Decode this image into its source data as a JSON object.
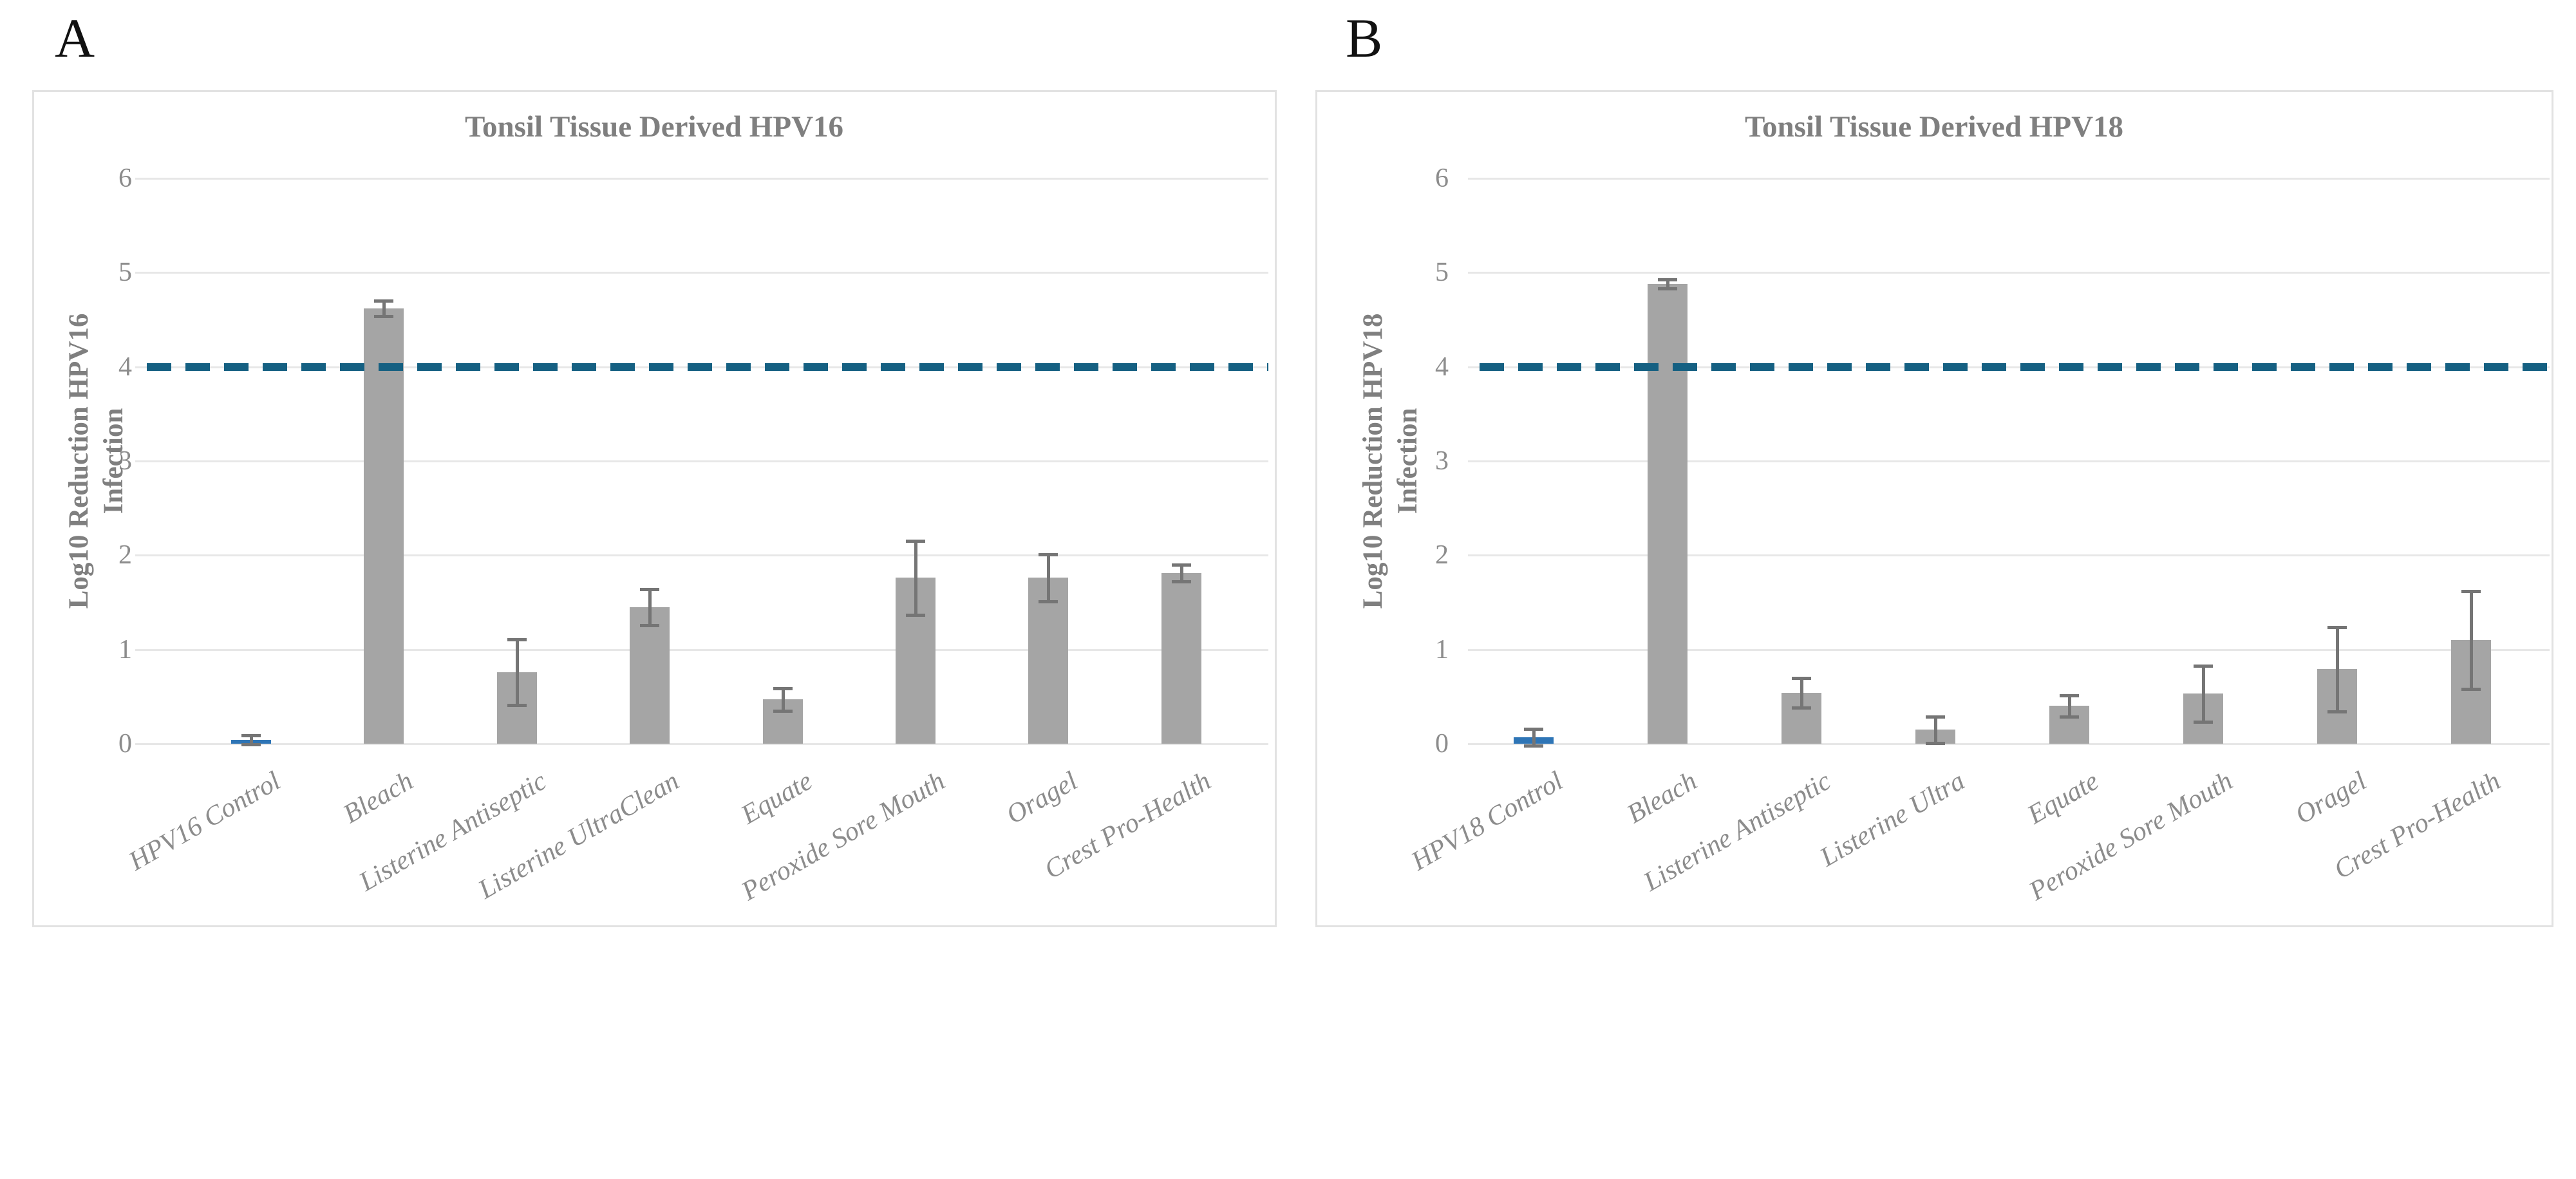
{
  "figure": {
    "panel_a_letter": "A",
    "panel_b_letter": "B"
  },
  "style": {
    "bar_default_color": "#A5A5A5",
    "bar_control_color": "#2E75B6",
    "error_bar_color": "#757575",
    "reference_line_color": "#156082",
    "gridline_color": "#E7E7E7",
    "panel_border_color": "#E2E2E2",
    "title_color": "#7F7F7F",
    "tick_label_color": "#8C8C8C"
  },
  "chart_data": [
    {
      "type": "bar",
      "title": "Tonsil Tissue Derived HPV16",
      "ylabel_line1": "Log10 Reduction HPV16",
      "ylabel_line2": "Infection",
      "ylim": [
        0,
        6
      ],
      "yticks": [
        "0",
        "1",
        "2",
        "3",
        "4",
        "5",
        "6"
      ],
      "grid": true,
      "reference_line_y": 4,
      "legend": "none",
      "highlight_index": 0,
      "categories": [
        "HPV16 Control",
        "Bleach",
        "Listerine Antiseptic",
        "Listerine UltraClean",
        "Equate",
        "Peroxide Sore Mouth",
        "Oragel",
        "Crest Pro-Health"
      ],
      "values": [
        0.04,
        4.62,
        0.76,
        1.45,
        0.47,
        1.76,
        1.76,
        1.81
      ],
      "errors": [
        0.05,
        0.08,
        0.35,
        0.19,
        0.12,
        0.39,
        0.25,
        0.09
      ]
    },
    {
      "type": "bar",
      "title": "Tonsil Tissue Derived HPV18",
      "ylabel_line1": "Log10 Reduction HPV18",
      "ylabel_line2": "Infection",
      "ylim": [
        0,
        6
      ],
      "yticks": [
        "0",
        "1",
        "2",
        "3",
        "4",
        "5",
        "6"
      ],
      "grid": true,
      "reference_line_y": 4,
      "legend": "none",
      "highlight_index": 0,
      "categories": [
        "HPV18 Control",
        "Bleach",
        "Listerine Antiseptic",
        "Listerine Ultra",
        "Equate",
        "Peroxide Sore Mouth",
        "Oragel",
        "Crest Pro-Health"
      ],
      "values": [
        0.07,
        4.88,
        0.54,
        0.15,
        0.4,
        0.53,
        0.79,
        1.1
      ],
      "errors": [
        0.09,
        0.05,
        0.16,
        0.14,
        0.11,
        0.3,
        0.45,
        0.52
      ]
    }
  ]
}
